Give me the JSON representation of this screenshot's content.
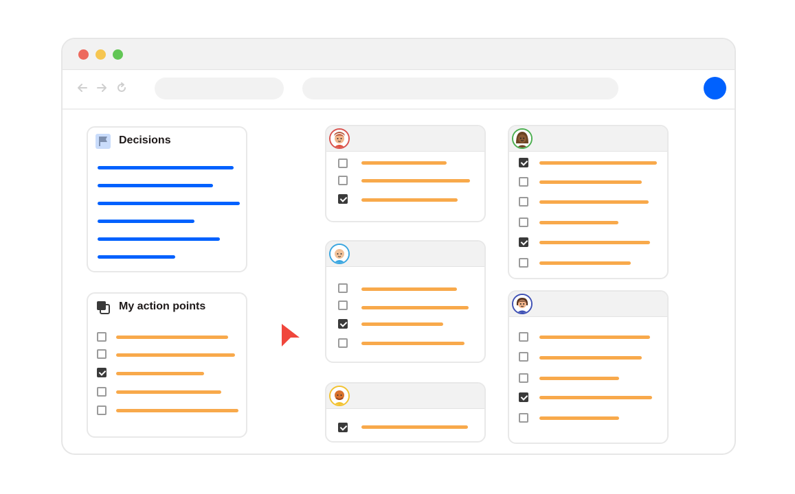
{
  "window": {
    "traffic_lights": {
      "close": "#ed6a5e",
      "minimize": "#f6c651",
      "zoom": "#62c655"
    }
  },
  "toolbar": {
    "nav_icons": [
      "back-arrow-icon",
      "forward-arrow-icon",
      "reload-icon"
    ],
    "tab_pill": "",
    "address_bar": ""
  },
  "decisions": {
    "title": "Decisions",
    "icon": "flag-icon",
    "accent": "#0061fe"
  },
  "action_points": {
    "title": "My action points",
    "icon": "stacked-squares-icon",
    "items": [
      {
        "checked": false
      },
      {
        "checked": false
      },
      {
        "checked": true
      },
      {
        "checked": false
      },
      {
        "checked": false
      }
    ]
  },
  "people": [
    {
      "avatar_ring": "#d9534f",
      "items": [
        {
          "checked": false
        },
        {
          "checked": false
        },
        {
          "checked": true
        }
      ]
    },
    {
      "avatar_ring": "#3aa6e0",
      "items": [
        {
          "checked": false
        },
        {
          "checked": false
        },
        {
          "checked": true
        },
        {
          "checked": false
        }
      ]
    },
    {
      "avatar_ring": "#f2c230",
      "items": [
        {
          "checked": true
        }
      ]
    },
    {
      "avatar_ring": "#4caf50",
      "items": [
        {
          "checked": true
        },
        {
          "checked": false
        },
        {
          "checked": false
        },
        {
          "checked": false
        },
        {
          "checked": true
        },
        {
          "checked": false
        }
      ]
    },
    {
      "avatar_ring": "#3f51b5",
      "items": [
        {
          "checked": false
        },
        {
          "checked": false
        },
        {
          "checked": false
        },
        {
          "checked": true
        },
        {
          "checked": false
        }
      ]
    }
  ],
  "colors": {
    "task_line": "#f8a94b",
    "cursor": "#f0463c",
    "profile": "#0061fe"
  }
}
